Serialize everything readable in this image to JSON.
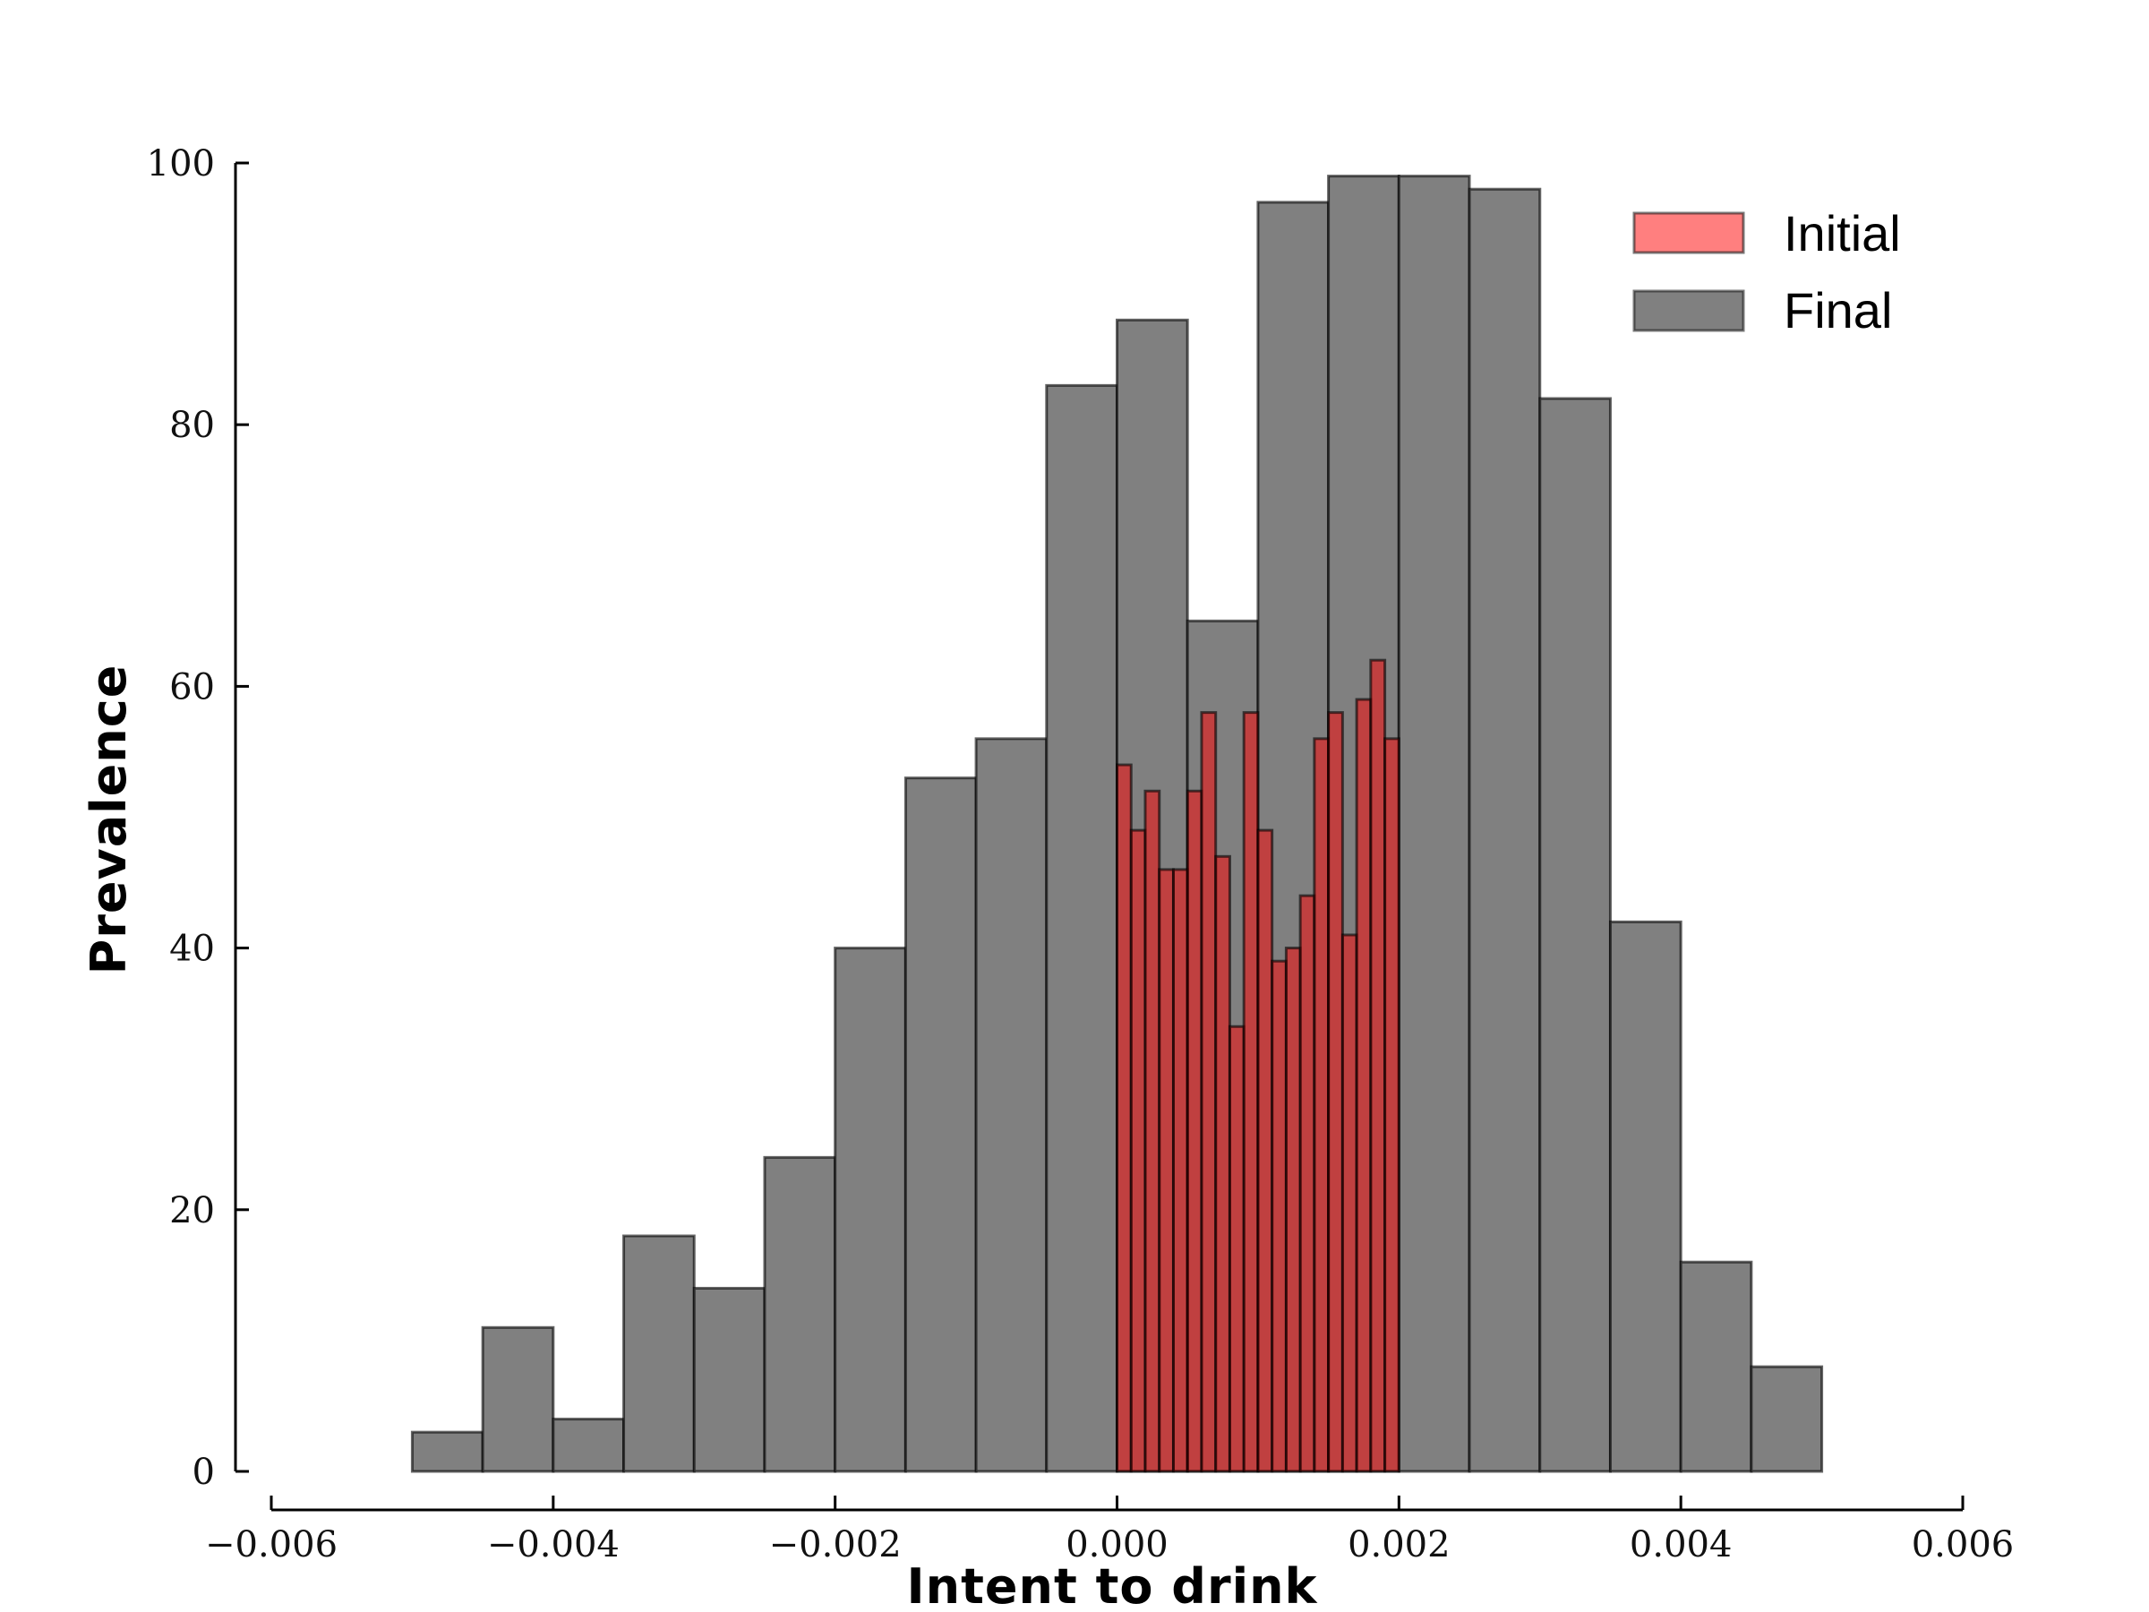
{
  "chart_data": {
    "type": "bar",
    "xlabel": "Intent to drink",
    "ylabel": "Prevalence",
    "xlim": [
      -0.006,
      0.006
    ],
    "ylim": [
      0,
      100
    ],
    "xticks": [
      -0.006,
      -0.004,
      -0.002,
      0.0,
      0.002,
      0.004,
      0.006
    ],
    "xtick_labels": [
      "−0.006",
      "−0.004",
      "−0.002",
      "0.000",
      "0.002",
      "0.004",
      "0.006"
    ],
    "yticks": [
      0,
      20,
      40,
      60,
      80,
      100
    ],
    "ytick_labels": [
      "0",
      "20",
      "40",
      "60",
      "80",
      "100"
    ],
    "grid": false,
    "legend_position": "top-right",
    "series": [
      {
        "name": "Final",
        "color": "#808080",
        "bin_edges": [
          -0.005,
          -0.0045,
          -0.004,
          -0.0035,
          -0.003,
          -0.0025,
          -0.002,
          -0.0015,
          -0.001,
          -0.0005,
          0.0,
          0.0005,
          0.001,
          0.0015,
          0.002,
          0.0025,
          0.003,
          0.0035,
          0.004,
          0.0045,
          0.005
        ],
        "values": [
          3,
          11,
          4,
          18,
          14,
          24,
          40,
          53,
          56,
          83,
          88,
          65,
          97,
          99,
          99,
          98,
          82,
          42,
          16,
          8
        ]
      },
      {
        "name": "Initial",
        "color": "#ff0000",
        "bin_edges": [
          0.0,
          0.0001,
          0.0002,
          0.0003,
          0.0004,
          0.0005,
          0.0006,
          0.0007,
          0.0008,
          0.0009,
          0.001,
          0.0011,
          0.0012,
          0.0013,
          0.0014,
          0.0015,
          0.0016,
          0.0017,
          0.0018,
          0.0019,
          0.002
        ],
        "values": [
          54,
          49,
          52,
          46,
          46,
          52,
          58,
          47,
          34,
          58,
          49,
          39,
          40,
          44,
          56,
          58,
          41,
          59,
          62,
          56
        ]
      }
    ]
  }
}
